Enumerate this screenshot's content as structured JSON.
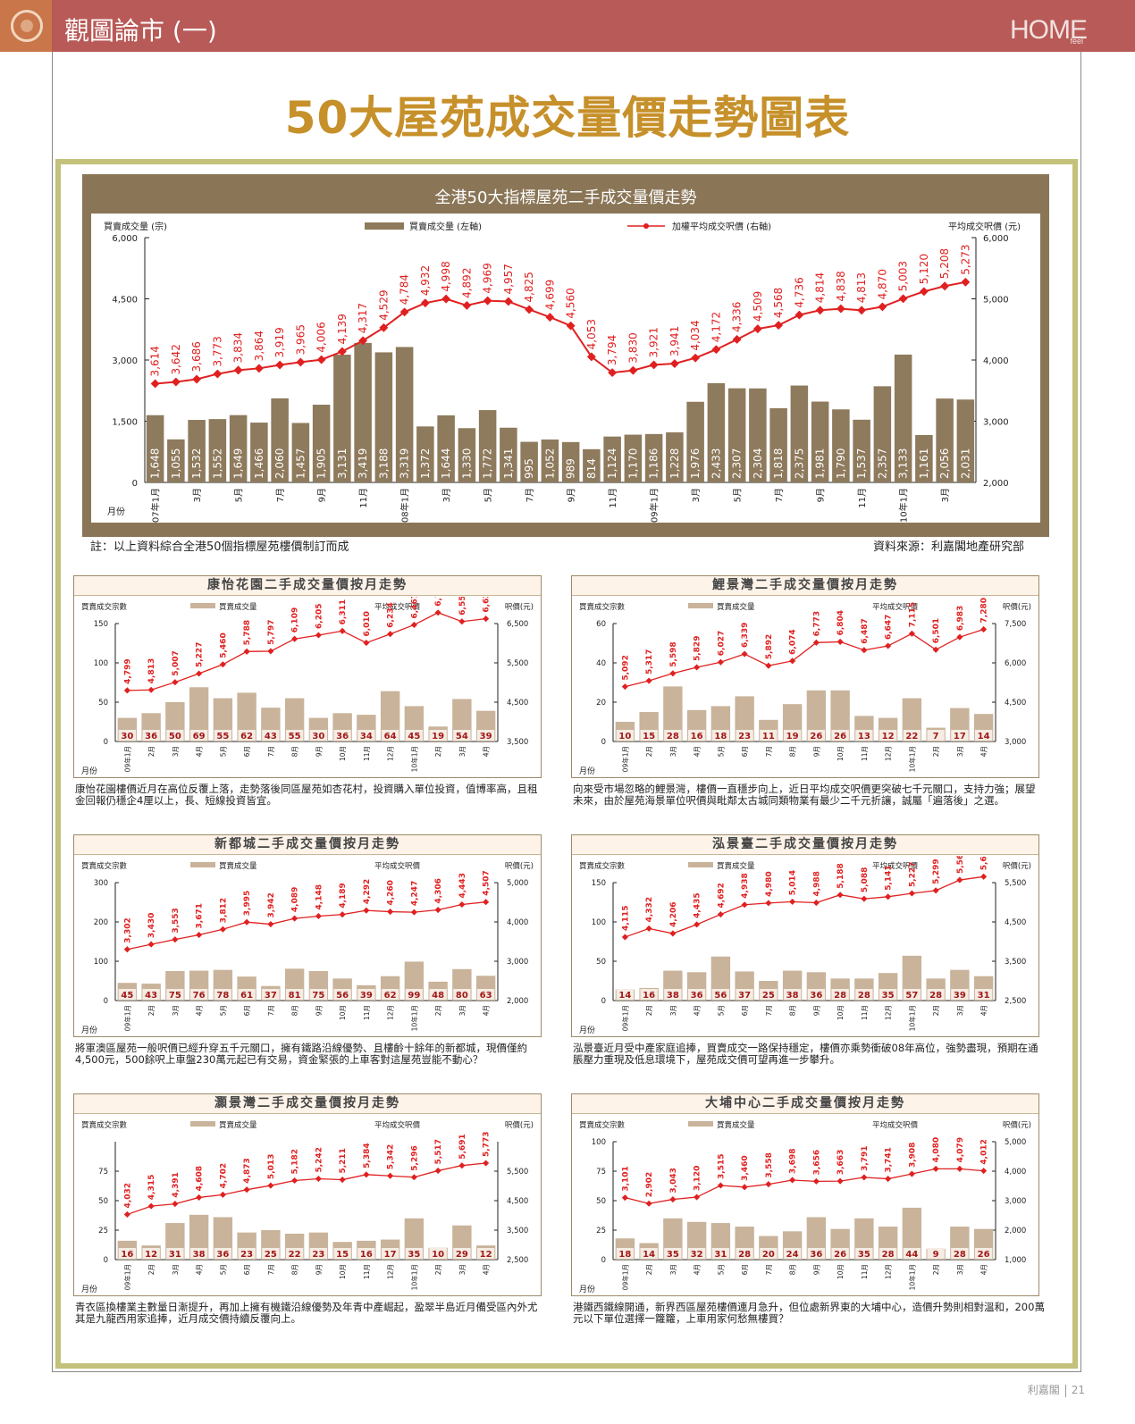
{
  "header": {
    "section_title": "觀圖論市 (一)",
    "brand": "HOME",
    "brand_sub": "feel"
  },
  "page_title": "50大屋苑成交量價走勢圖表",
  "main_chart": {
    "title": "全港50大指標屋苑二手成交量價走勢",
    "left_axis_label": "買賣成交量 (宗)",
    "right_axis_label": "平均成交呎價 (元)",
    "legend_bar": "買賣成交量 (左軸)",
    "legend_line": "加權平均成交呎價 (右軸)",
    "month_label": "月份",
    "note": "註：以上資料綜合全港50個指標屋苑樓價制訂而成",
    "source": "資料來源：利嘉閣地產研究部"
  },
  "chart_data": [
    {
      "type": "bar",
      "title": "全港50大指標屋苑二手成交量價走勢",
      "ylabel": "買賣成交量 (宗)",
      "y2label": "平均成交呎價 (元)",
      "ylim": [
        0,
        6000
      ],
      "y2lim": [
        2000,
        6000
      ],
      "yticks": [
        "6,000",
        "4,500",
        "3,000",
        "1,500",
        "0"
      ],
      "y2ticks": [
        "6,000",
        "5,000",
        "4,000",
        "3,000",
        "2,000"
      ],
      "categories": [
        "07年1月",
        "2月",
        "3月",
        "4月",
        "5月",
        "6月",
        "7月",
        "8月",
        "9月",
        "10月",
        "11月",
        "12月",
        "08年1月",
        "2月",
        "3月",
        "4月",
        "5月",
        "6月",
        "7月",
        "8月",
        "9月",
        "10月",
        "11月",
        "12月",
        "09年1月",
        "2月",
        "3月",
        "4月",
        "5月",
        "6月",
        "7月",
        "8月",
        "9月",
        "10月",
        "11月",
        "12月",
        "10年1月",
        "2月",
        "3月",
        "4月"
      ],
      "xticks": [
        "07年1月",
        "",
        "3月",
        "",
        "5月",
        "",
        "7月",
        "",
        "9月",
        "",
        "11月",
        "",
        "08年1月",
        "",
        "3月",
        "",
        "5月",
        "",
        "7月",
        "",
        "9月",
        "",
        "11月",
        "",
        "09年1月",
        "",
        "3月",
        "",
        "5月",
        "",
        "7月",
        "",
        "9月",
        "",
        "11月",
        "",
        "10年1月",
        "",
        "3月",
        ""
      ],
      "series": [
        {
          "name": "買賣成交量 (左軸)",
          "type": "bar",
          "color": "#8e7a5c",
          "values": [
            1648,
            1055,
            1532,
            1552,
            1649,
            1466,
            2060,
            1457,
            1905,
            3131,
            3419,
            3188,
            3319,
            1372,
            1644,
            1330,
            1772,
            1341,
            995,
            1052,
            989,
            814,
            1124,
            1170,
            1186,
            1228,
            1976,
            2433,
            2307,
            2304,
            1818,
            2375,
            1981,
            1790,
            1537,
            2357,
            3133,
            1161,
            2056,
            2031
          ],
          "labels": [
            "1,648",
            "1,055",
            "1,532",
            "1,552",
            "1,649",
            "1,466",
            "2,060",
            "1,457",
            "1,905",
            "3,131",
            "3,419",
            "3,188",
            "3,319",
            "1,372",
            "1,644",
            "1,330",
            "1,772",
            "1,341",
            "995",
            "1,052",
            "989",
            "814",
            "1,124",
            "1,170",
            "1,186",
            "1,228",
            "1,976",
            "2,433",
            "2,307",
            "2,304",
            "1,818",
            "2,375",
            "1,981",
            "1,790",
            "1,537",
            "2,357",
            "3,133",
            "1,161",
            "2,056",
            "2,031"
          ]
        },
        {
          "name": "加權平均成交呎價 (右軸)",
          "type": "line",
          "color": "#e02020",
          "values": [
            3614,
            3642,
            3686,
            3773,
            3834,
            3864,
            3919,
            3965,
            4006,
            4139,
            4317,
            4529,
            4784,
            4932,
            4998,
            4892,
            4969,
            4957,
            4825,
            4699,
            4560,
            4053,
            3794,
            3830,
            3921,
            3941,
            4034,
            4172,
            4336,
            4509,
            4568,
            4736,
            4814,
            4838,
            4813,
            4870,
            5003,
            5120,
            5208,
            5273
          ],
          "labels": [
            "3,614",
            "3,642",
            "3,686",
            "3,773",
            "3,834",
            "3,864",
            "3,919",
            "3,965",
            "4,006",
            "4,139",
            "4,317",
            "4,529",
            "4,784",
            "4,932",
            "4,998",
            "4,892",
            "4,969",
            "4,957",
            "4,825",
            "4,699",
            "4,560",
            "4,053",
            "3,794",
            "3,830",
            "3,921",
            "3,941",
            "4,034",
            "4,172",
            "4,336",
            "4,509",
            "4,568",
            "4,736",
            "4,814",
            "4,838",
            "4,813",
            "4,870",
            "5,003",
            "5,120",
            "5,208",
            "5,273"
          ]
        }
      ]
    },
    {
      "type": "bar",
      "title": "康怡花園二手成交量價按月走勢",
      "caption": "康怡花園樓價近月在高位反覆上落，走勢落後同區屋苑如杏花村，投資購入單位投資，值博率高，且租金回報仍穩企4厘以上，長、短線投資皆宜。",
      "ylabel": "買賣成交宗數",
      "y2label": "呎價(元)",
      "ylim": [
        0,
        150
      ],
      "y2lim": [
        3500,
        6500
      ],
      "yticks": [
        "150",
        "100",
        "50",
        "0"
      ],
      "y2ticks": [
        "6,500",
        "5,500",
        "4,500",
        "3,500"
      ],
      "categories": [
        "09年1月",
        "2月",
        "3月",
        "4月",
        "5月",
        "6月",
        "7月",
        "8月",
        "9月",
        "10月",
        "11月",
        "12月",
        "10年1月",
        "2月",
        "3月",
        "4月"
      ],
      "series": [
        {
          "name": "買賣成交量",
          "values": [
            30,
            36,
            50,
            69,
            55,
            62,
            43,
            55,
            30,
            36,
            34,
            64,
            45,
            19,
            54,
            39
          ]
        },
        {
          "name": "平均成交呎價",
          "values": [
            4799,
            4813,
            5007,
            5227,
            5460,
            5788,
            5797,
            6109,
            6205,
            6311,
            6010,
            6234,
            6467,
            6778,
            6552,
            6623
          ],
          "labels": [
            "4,799",
            "4,813",
            "5,007",
            "5,227",
            "5,460",
            "5,788",
            "5,797",
            "6,109",
            "6,205",
            "6,311",
            "6,010",
            "6,234",
            "6,467",
            "6,778",
            "6,552",
            "6,623"
          ]
        }
      ]
    },
    {
      "type": "bar",
      "title": "鯉景灣二手成交量價按月走勢",
      "caption": "向來受市場忽略的鯉景灣，樓價一直穩步向上，近日平均成交呎價更突破七千元關口，支持力強；展望未來，由於屋苑海景單位呎價與毗鄰太古城同類物業有最少二千元折讓，誠屬「遍落後」之選。",
      "ylabel": "買賣成交宗數",
      "y2label": "呎價(元)",
      "ylim": [
        0,
        60
      ],
      "y2lim": [
        3000,
        7500
      ],
      "yticks": [
        "60",
        "40",
        "20",
        "0"
      ],
      "y2ticks": [
        "7,500",
        "6,000",
        "4,500",
        "3,000"
      ],
      "categories": [
        "09年1月",
        "2月",
        "3月",
        "4月",
        "5月",
        "6月",
        "7月",
        "8月",
        "9月",
        "10月",
        "11月",
        "12月",
        "10年1月",
        "2月",
        "3月",
        "4月"
      ],
      "series": [
        {
          "name": "買賣成交量",
          "values": [
            10,
            15,
            28,
            16,
            18,
            23,
            11,
            19,
            26,
            26,
            13,
            12,
            22,
            7,
            17,
            14
          ]
        },
        {
          "name": "平均成交呎價",
          "values": [
            5092,
            5317,
            5598,
            5829,
            6027,
            6339,
            5892,
            6074,
            6773,
            6804,
            6487,
            6647,
            7115,
            6501,
            6983,
            7280
          ],
          "labels": [
            "5,092",
            "5,317",
            "5,598",
            "5,829",
            "6,027",
            "6,339",
            "5,892",
            "6,074",
            "6,773",
            "6,804",
            "6,487",
            "6,647",
            "7,115",
            "6,501",
            "6,983",
            "7,280"
          ]
        }
      ]
    },
    {
      "type": "bar",
      "title": "新都城二手成交量價按月走勢",
      "caption": "將軍澳區屋苑一般呎價已經升穿五千元關口，擁有鐵路沿線優勢、且樓齡十餘年的新都城，現價僅約4,500元，500餘呎上車盤230萬元起已有交易，資金緊張的上車客對這屋苑豈能不動心？",
      "ylabel": "買賣成交宗數",
      "y2label": "呎價(元)",
      "ylim": [
        0,
        300
      ],
      "y2lim": [
        2000,
        5000
      ],
      "yticks": [
        "300",
        "200",
        "100",
        "0"
      ],
      "y2ticks": [
        "5,000",
        "4,000",
        "3,000",
        "2,000"
      ],
      "categories": [
        "09年1月",
        "2月",
        "3月",
        "4月",
        "5月",
        "6月",
        "7月",
        "8月",
        "9月",
        "10月",
        "11月",
        "12月",
        "10年1月",
        "2月",
        "3月",
        "4月"
      ],
      "series": [
        {
          "name": "買賣成交量",
          "values": [
            45,
            43,
            75,
            76,
            78,
            61,
            37,
            81,
            75,
            56,
            39,
            62,
            99,
            48,
            80,
            63
          ]
        },
        {
          "name": "平均成交呎價",
          "values": [
            3302,
            3430,
            3553,
            3671,
            3812,
            3995,
            3942,
            4089,
            4148,
            4189,
            4292,
            4260,
            4247,
            4306,
            4443,
            4507
          ],
          "labels": [
            "3,302",
            "3,430",
            "3,553",
            "3,671",
            "3,812",
            "3,995",
            "3,942",
            "4,089",
            "4,148",
            "4,189",
            "4,292",
            "4,260",
            "4,247",
            "4,306",
            "4,443",
            "4,507"
          ]
        }
      ]
    },
    {
      "type": "bar",
      "title": "泓景臺二手成交量價按月走勢",
      "caption": "泓景臺近月受中產家庭追捧，買賣成交一路保持穩定，樓價亦乘勢衝破08年高位，強勢盡現，預期在通脹壓力重現及低息環境下，屋苑成交價可望再進一步攀升。",
      "ylabel": "買賣成交宗數",
      "y2label": "呎價(元)",
      "ylim": [
        0,
        150
      ],
      "y2lim": [
        2500,
        5500
      ],
      "yticks": [
        "150",
        "100",
        "50",
        "0"
      ],
      "y2ticks": [
        "5,500",
        "4,500",
        "3,500",
        "2,500"
      ],
      "categories": [
        "09年1月",
        "2月",
        "3月",
        "4月",
        "5月",
        "6月",
        "7月",
        "8月",
        "9月",
        "10月",
        "11月",
        "12月",
        "10年1月",
        "2月",
        "3月",
        "4月"
      ],
      "series": [
        {
          "name": "買賣成交量",
          "values": [
            14,
            16,
            38,
            36,
            56,
            37,
            25,
            38,
            36,
            28,
            28,
            35,
            57,
            28,
            39,
            31
          ]
        },
        {
          "name": "平均成交呎價",
          "values": [
            4115,
            4332,
            4206,
            4435,
            4692,
            4938,
            4980,
            5014,
            4988,
            5188,
            5088,
            5141,
            5227,
            5299,
            5567,
            5652
          ],
          "labels": [
            "4,115",
            "4,332",
            "4,206",
            "4,435",
            "4,692",
            "4,938",
            "4,980",
            "5,014",
            "4,988",
            "5,188",
            "5,088",
            "5,141",
            "5,227",
            "5,299",
            "5,567",
            "5,652"
          ]
        }
      ]
    },
    {
      "type": "bar",
      "title": "灝景灣二手成交量價按月走勢",
      "caption": "青衣區換樓業主數量日漸提升，再加上擁有機鐵沿線優勢及年青中產崛起，盈翠半島近月備受區內外尤其是九龍西用家追捧，近月成交價持續反覆向上。",
      "ylabel": "買賣成交宗數",
      "y2label": "呎價(元)",
      "ylim": [
        0,
        100
      ],
      "y2lim": [
        2500,
        6500
      ],
      "yticks": [
        "75",
        "50",
        "25",
        "0"
      ],
      "y2ticks": [
        "5,500",
        "4,500",
        "3,500",
        "2,500"
      ],
      "categories": [
        "09年1月",
        "2月",
        "3月",
        "4月",
        "5月",
        "6月",
        "7月",
        "8月",
        "9月",
        "10月",
        "11月",
        "12月",
        "10年1月",
        "2月",
        "3月",
        "4月"
      ],
      "series": [
        {
          "name": "買賣成交量",
          "values": [
            16,
            12,
            31,
            38,
            36,
            23,
            25,
            22,
            23,
            15,
            16,
            17,
            35,
            10,
            29,
            12
          ]
        },
        {
          "name": "平均成交呎價",
          "values": [
            4032,
            4315,
            4391,
            4608,
            4702,
            4873,
            5013,
            5182,
            5242,
            5211,
            5384,
            5342,
            5296,
            5517,
            5691,
            5773
          ],
          "labels": [
            "4,032",
            "4,315",
            "4,391",
            "4,608",
            "4,702",
            "4,873",
            "5,013",
            "5,182",
            "5,242",
            "5,211",
            "5,384",
            "5,342",
            "5,296",
            "5,517",
            "5,691",
            "5,773"
          ]
        }
      ]
    },
    {
      "type": "bar",
      "title": "大埔中心二手成交量價按月走勢",
      "caption": "港鐵西鐵線開通，新界西區屋苑樓價連月急升，但位處新界東的大埔中心，造價升勢則相對溫和，200萬元以下單位選擇一籮籮，上車用家何愁無樓買？",
      "ylabel": "買賣成交宗數",
      "y2label": "呎價(元)",
      "ylim": [
        0,
        100
      ],
      "y2lim": [
        1000,
        5000
      ],
      "yticks": [
        "100",
        "75",
        "50",
        "25",
        "0"
      ],
      "y2ticks": [
        "5,000",
        "4,000",
        "3,000",
        "2,000",
        "1,000"
      ],
      "categories": [
        "09年1月",
        "2月",
        "3月",
        "4月",
        "5月",
        "6月",
        "7月",
        "8月",
        "9月",
        "10月",
        "11月",
        "12月",
        "10年1月",
        "2月",
        "3月",
        "4月"
      ],
      "series": [
        {
          "name": "買賣成交量",
          "values": [
            18,
            14,
            35,
            32,
            31,
            28,
            20,
            24,
            36,
            26,
            35,
            28,
            44,
            9,
            28,
            26
          ]
        },
        {
          "name": "平均成交呎價",
          "values": [
            3101,
            2902,
            3043,
            3120,
            3515,
            3460,
            3558,
            3698,
            3656,
            3663,
            3791,
            3741,
            3908,
            4080,
            4079,
            4012
          ],
          "labels": [
            "3,101",
            "2,902",
            "3,043",
            "3,120",
            "3,515",
            "3,460",
            "3,558",
            "3,698",
            "3,656",
            "3,663",
            "3,791",
            "3,741",
            "3,908",
            "4,080",
            "4,079",
            "4,012"
          ]
        }
      ]
    }
  ],
  "small_chart_labels": {
    "left": "買賣成交宗數",
    "bar": "買賣成交量",
    "line": "平均成交呎價",
    "right": "呎價(元)",
    "month": "月份"
  },
  "footer": {
    "company": "利嘉閣",
    "page": "21"
  },
  "colors": {
    "bar": "#c9b39a",
    "bar_main": "#8e7a5c",
    "line": "#e02020",
    "title": "#c6902a"
  }
}
